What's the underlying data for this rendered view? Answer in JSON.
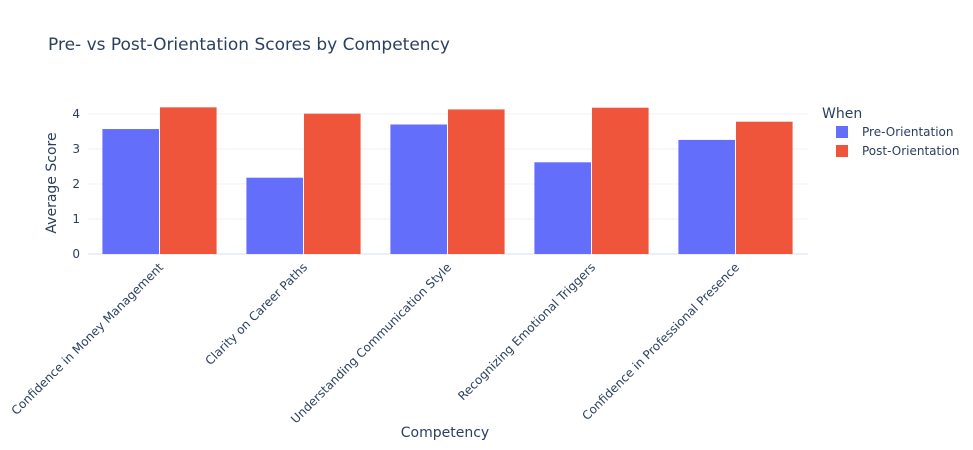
{
  "chart_data": {
    "type": "bar",
    "title": "Pre- vs Post-Orientation Scores by Competency",
    "xlabel": "Competency",
    "ylabel": "Average Score",
    "categories": [
      "Confidence in Money Management",
      "Clarity on Career Paths",
      "Understanding Communication Style",
      "Recognizing Emotional Triggers",
      "Confidence in Professional Presence"
    ],
    "series": [
      {
        "name": "Pre-Orientation",
        "color": "#636efa",
        "values": [
          3.57,
          2.18,
          3.7,
          2.62,
          3.26
        ]
      },
      {
        "name": "Post-Orientation",
        "color": "#ef553b",
        "values": [
          4.19,
          4.01,
          4.13,
          4.18,
          3.78
        ]
      }
    ],
    "ylim": [
      0,
      4.4
    ],
    "yticks": [
      0,
      1,
      2,
      3,
      4
    ],
    "legend": {
      "title": "When",
      "position": "right"
    },
    "grid": true
  }
}
